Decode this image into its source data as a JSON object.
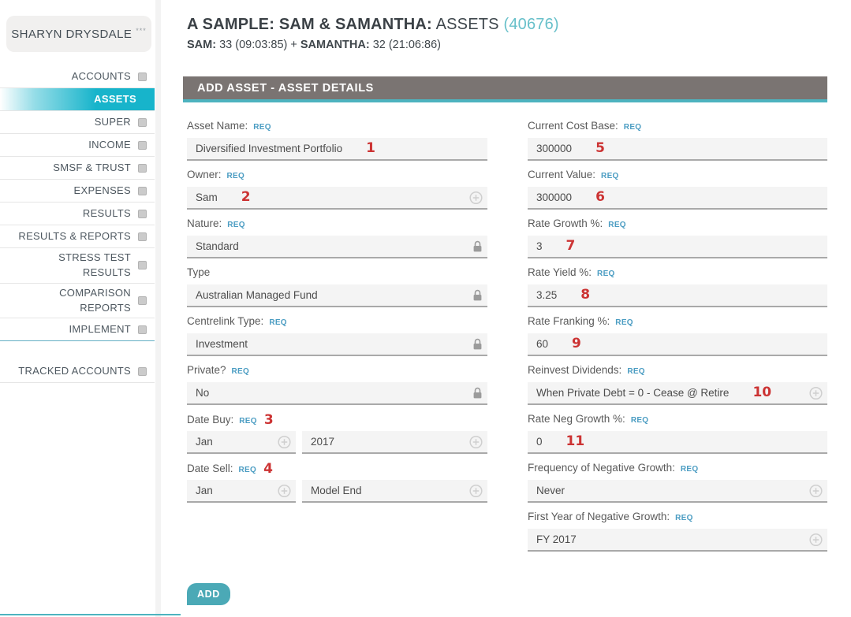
{
  "colors": {
    "accent_teal": "#2fb4c9",
    "form_header_gray": "#7a7472",
    "annotation_red": "#cc3333",
    "req_badge_blue": "#4a9cc2",
    "active_nav_cyan": "#17b4cb"
  },
  "sidebar": {
    "client_name": "SHARYN DRYSDALE",
    "client_stars": "***",
    "items": [
      {
        "label": "ACCOUNTS",
        "active": false,
        "bullet": true
      },
      {
        "label": "ASSETS",
        "active": true,
        "bullet": false
      },
      {
        "label": "SUPER",
        "active": false,
        "bullet": true
      },
      {
        "label": "INCOME",
        "active": false,
        "bullet": true
      },
      {
        "label": "SMSF & TRUST",
        "active": false,
        "bullet": true
      },
      {
        "label": "EXPENSES",
        "active": false,
        "bullet": true
      },
      {
        "label": "RESULTS",
        "active": false,
        "bullet": true
      },
      {
        "label": "RESULTS & REPORTS",
        "active": false,
        "bullet": true
      },
      {
        "label": "STRESS TEST RESULTS",
        "active": false,
        "bullet": true
      },
      {
        "label": "COMPARISON REPORTS",
        "active": false,
        "bullet": true
      },
      {
        "label": "IMPLEMENT",
        "active": false,
        "bullet": true,
        "divider_after": "teal"
      }
    ],
    "bottom_items": [
      {
        "label": "TRACKED ACCOUNTS",
        "active": false,
        "bullet": true
      }
    ]
  },
  "header": {
    "title_bold": "A SAMPLE: SAM & SAMANTHA:",
    "title_section": " ASSETS ",
    "title_count": "(40676)",
    "subtitle_sam_label": "SAM:",
    "subtitle_sam_value": " 33 (09:03:85) + ",
    "subtitle_samantha_label": "SAMANTHA:",
    "subtitle_samantha_value": " 32 (21:06:86)"
  },
  "form": {
    "title": "ADD ASSET - ASSET DETAILS",
    "req_badge": "REQ",
    "add_button": "ADD",
    "left_fields": [
      {
        "label": "Asset Name:",
        "req": true,
        "value": "Diversified Investment Portfolio",
        "annotation": "1",
        "annotation_pos": "value",
        "icon": null
      },
      {
        "label": "Owner:",
        "req": true,
        "value": "Sam",
        "annotation": "2",
        "annotation_pos": "value",
        "icon": "circle-plus"
      },
      {
        "label": "Nature:",
        "req": true,
        "value": "Standard",
        "icon": "lock"
      },
      {
        "label": "Type",
        "req": false,
        "value": "Australian Managed Fund",
        "icon": "lock"
      },
      {
        "label": "Centrelink Type:",
        "req": true,
        "value": "Investment",
        "icon": "lock"
      },
      {
        "label": "Private?",
        "req": true,
        "value": "No",
        "icon": "lock"
      },
      {
        "label": "Date Buy:",
        "req": true,
        "annotation": "3",
        "annotation_pos": "label",
        "parts": [
          {
            "value": "Jan",
            "icon": "circle-plus"
          },
          {
            "value": "2017",
            "icon": "circle-plus"
          }
        ]
      },
      {
        "label": "Date Sell:",
        "req": true,
        "annotation": "4",
        "annotation_pos": "label",
        "parts": [
          {
            "value": "Jan",
            "icon": "circle-plus"
          },
          {
            "value": "Model End",
            "icon": "circle-plus"
          }
        ]
      }
    ],
    "right_fields": [
      {
        "label": "Current Cost Base:",
        "req": true,
        "value": "300000",
        "annotation": "5",
        "annotation_pos": "value"
      },
      {
        "label": "Current Value:",
        "req": true,
        "value": "300000",
        "annotation": "6",
        "annotation_pos": "value"
      },
      {
        "label": "Rate Growth %:",
        "req": true,
        "value": "3",
        "annotation": "7",
        "annotation_pos": "value"
      },
      {
        "label": "Rate Yield %:",
        "req": true,
        "value": "3.25",
        "annotation": "8",
        "annotation_pos": "value"
      },
      {
        "label": "Rate Franking %:",
        "req": true,
        "value": "60",
        "annotation": "9",
        "annotation_pos": "value"
      },
      {
        "label": "Reinvest Dividends:",
        "req": true,
        "value": "When Private Debt = 0 - Cease @ Retire",
        "annotation": "10",
        "annotation_pos": "value",
        "icon": "circle-plus"
      },
      {
        "label": "Rate Neg Growth %:",
        "req": true,
        "value": "0",
        "annotation": "11",
        "annotation_pos": "value"
      },
      {
        "label": "Frequency of Negative Growth:",
        "req": true,
        "value": "Never",
        "icon": "circle-plus"
      },
      {
        "label": "First Year of Negative Growth:",
        "req": true,
        "value": "FY 2017",
        "icon": "circle-plus"
      }
    ]
  }
}
